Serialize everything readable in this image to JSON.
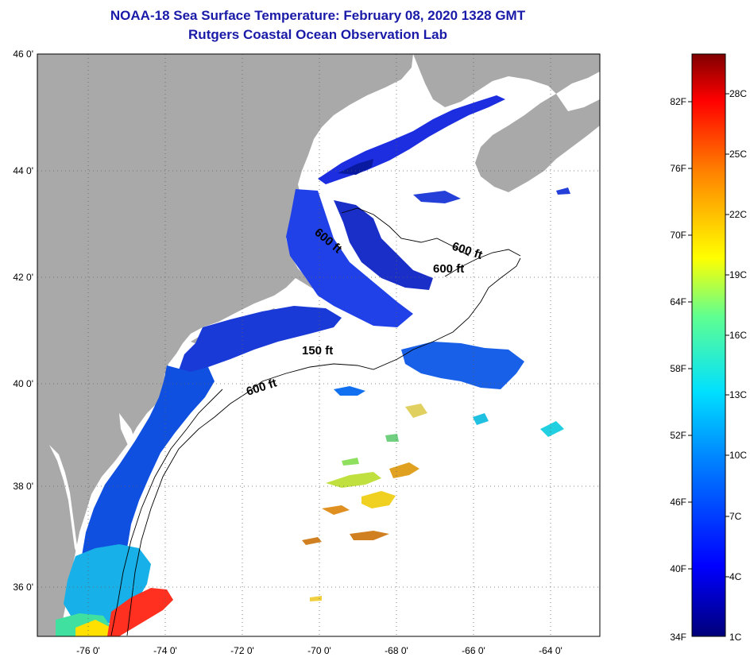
{
  "title": "NOAA-18 Sea Surface Temperature:  February 08, 2020 1328 GMT",
  "subtitle": "Rutgers Coastal Ocean Observation Lab",
  "map": {
    "lat_range": [
      35,
      46
    ],
    "lon_range": [
      -77,
      -63
    ],
    "lat_labels": [
      "46 0'",
      "44 0'",
      "42 0'",
      "40 0'",
      "38 0'",
      "36 0'"
    ],
    "lon_labels": [
      "-76 0'",
      "-74 0'",
      "-72 0'",
      "-70 0'",
      "-68 0'",
      "-66 0'",
      "-64 0'"
    ],
    "contour_labels": [
      "600 ft",
      "600 ft",
      "600 ft",
      "150 ft",
      "600 ft"
    ],
    "land_color": "#a9a9a9",
    "ocean_color": "#ffffff"
  },
  "colorbar": {
    "range_c": [
      1,
      30
    ],
    "fahrenheit_labels": [
      "82F",
      "76F",
      "70F",
      "64F",
      "58F",
      "52F",
      "46F",
      "40F",
      "34F"
    ],
    "celsius_labels": [
      "28C",
      "25C",
      "22C",
      "19C",
      "16C",
      "13C",
      "10C",
      "7C",
      "4C",
      "1C"
    ]
  }
}
